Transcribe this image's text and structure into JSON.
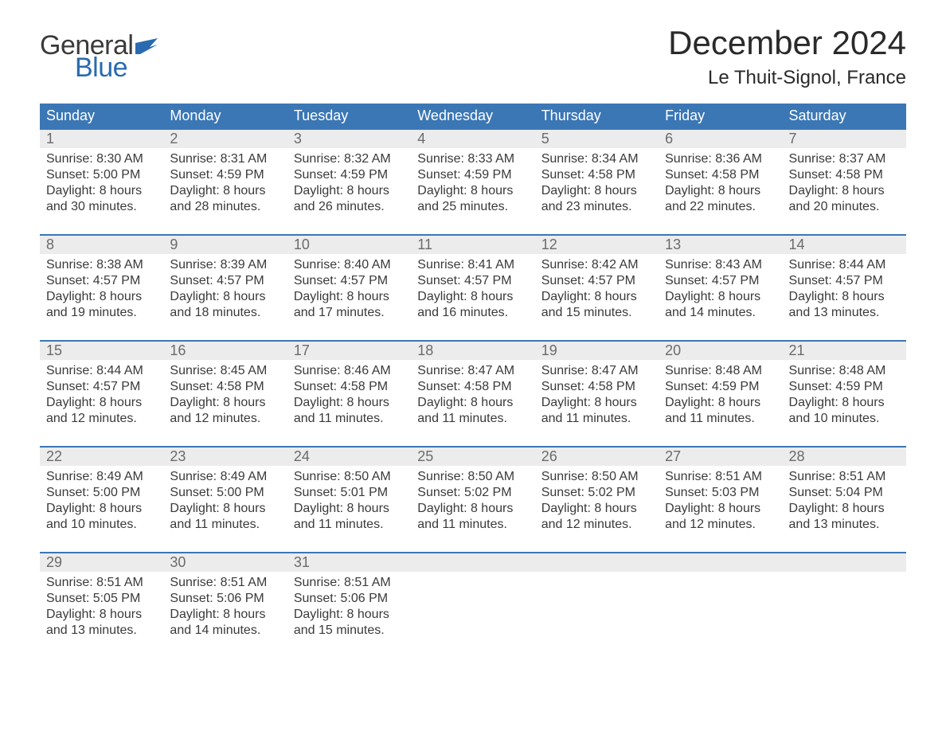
{
  "logo": {
    "text1": "General",
    "text2": "Blue",
    "flag_color": "#2a6bb0"
  },
  "title": "December 2024",
  "location": "Le Thuit-Signol, France",
  "colors": {
    "header_bg": "#3b77b5",
    "header_text": "#ffffff",
    "daynum_bg": "#ececec",
    "daynum_text": "#6b6b6b",
    "body_text": "#3a3a3a",
    "week_border": "#3b77b5"
  },
  "day_names": [
    "Sunday",
    "Monday",
    "Tuesday",
    "Wednesday",
    "Thursday",
    "Friday",
    "Saturday"
  ],
  "weeks": [
    [
      {
        "n": "1",
        "sunrise": "8:30 AM",
        "sunset": "5:00 PM",
        "daylight": "8 hours and 30 minutes."
      },
      {
        "n": "2",
        "sunrise": "8:31 AM",
        "sunset": "4:59 PM",
        "daylight": "8 hours and 28 minutes."
      },
      {
        "n": "3",
        "sunrise": "8:32 AM",
        "sunset": "4:59 PM",
        "daylight": "8 hours and 26 minutes."
      },
      {
        "n": "4",
        "sunrise": "8:33 AM",
        "sunset": "4:59 PM",
        "daylight": "8 hours and 25 minutes."
      },
      {
        "n": "5",
        "sunrise": "8:34 AM",
        "sunset": "4:58 PM",
        "daylight": "8 hours and 23 minutes."
      },
      {
        "n": "6",
        "sunrise": "8:36 AM",
        "sunset": "4:58 PM",
        "daylight": "8 hours and 22 minutes."
      },
      {
        "n": "7",
        "sunrise": "8:37 AM",
        "sunset": "4:58 PM",
        "daylight": "8 hours and 20 minutes."
      }
    ],
    [
      {
        "n": "8",
        "sunrise": "8:38 AM",
        "sunset": "4:57 PM",
        "daylight": "8 hours and 19 minutes."
      },
      {
        "n": "9",
        "sunrise": "8:39 AM",
        "sunset": "4:57 PM",
        "daylight": "8 hours and 18 minutes."
      },
      {
        "n": "10",
        "sunrise": "8:40 AM",
        "sunset": "4:57 PM",
        "daylight": "8 hours and 17 minutes."
      },
      {
        "n": "11",
        "sunrise": "8:41 AM",
        "sunset": "4:57 PM",
        "daylight": "8 hours and 16 minutes."
      },
      {
        "n": "12",
        "sunrise": "8:42 AM",
        "sunset": "4:57 PM",
        "daylight": "8 hours and 15 minutes."
      },
      {
        "n": "13",
        "sunrise": "8:43 AM",
        "sunset": "4:57 PM",
        "daylight": "8 hours and 14 minutes."
      },
      {
        "n": "14",
        "sunrise": "8:44 AM",
        "sunset": "4:57 PM",
        "daylight": "8 hours and 13 minutes."
      }
    ],
    [
      {
        "n": "15",
        "sunrise": "8:44 AM",
        "sunset": "4:57 PM",
        "daylight": "8 hours and 12 minutes."
      },
      {
        "n": "16",
        "sunrise": "8:45 AM",
        "sunset": "4:58 PM",
        "daylight": "8 hours and 12 minutes."
      },
      {
        "n": "17",
        "sunrise": "8:46 AM",
        "sunset": "4:58 PM",
        "daylight": "8 hours and 11 minutes."
      },
      {
        "n": "18",
        "sunrise": "8:47 AM",
        "sunset": "4:58 PM",
        "daylight": "8 hours and 11 minutes."
      },
      {
        "n": "19",
        "sunrise": "8:47 AM",
        "sunset": "4:58 PM",
        "daylight": "8 hours and 11 minutes."
      },
      {
        "n": "20",
        "sunrise": "8:48 AM",
        "sunset": "4:59 PM",
        "daylight": "8 hours and 11 minutes."
      },
      {
        "n": "21",
        "sunrise": "8:48 AM",
        "sunset": "4:59 PM",
        "daylight": "8 hours and 10 minutes."
      }
    ],
    [
      {
        "n": "22",
        "sunrise": "8:49 AM",
        "sunset": "5:00 PM",
        "daylight": "8 hours and 10 minutes."
      },
      {
        "n": "23",
        "sunrise": "8:49 AM",
        "sunset": "5:00 PM",
        "daylight": "8 hours and 11 minutes."
      },
      {
        "n": "24",
        "sunrise": "8:50 AM",
        "sunset": "5:01 PM",
        "daylight": "8 hours and 11 minutes."
      },
      {
        "n": "25",
        "sunrise": "8:50 AM",
        "sunset": "5:02 PM",
        "daylight": "8 hours and 11 minutes."
      },
      {
        "n": "26",
        "sunrise": "8:50 AM",
        "sunset": "5:02 PM",
        "daylight": "8 hours and 12 minutes."
      },
      {
        "n": "27",
        "sunrise": "8:51 AM",
        "sunset": "5:03 PM",
        "daylight": "8 hours and 12 minutes."
      },
      {
        "n": "28",
        "sunrise": "8:51 AM",
        "sunset": "5:04 PM",
        "daylight": "8 hours and 13 minutes."
      }
    ],
    [
      {
        "n": "29",
        "sunrise": "8:51 AM",
        "sunset": "5:05 PM",
        "daylight": "8 hours and 13 minutes."
      },
      {
        "n": "30",
        "sunrise": "8:51 AM",
        "sunset": "5:06 PM",
        "daylight": "8 hours and 14 minutes."
      },
      {
        "n": "31",
        "sunrise": "8:51 AM",
        "sunset": "5:06 PM",
        "daylight": "8 hours and 15 minutes."
      },
      null,
      null,
      null,
      null
    ]
  ],
  "labels": {
    "sunrise": "Sunrise:",
    "sunset": "Sunset:",
    "daylight": "Daylight:"
  }
}
